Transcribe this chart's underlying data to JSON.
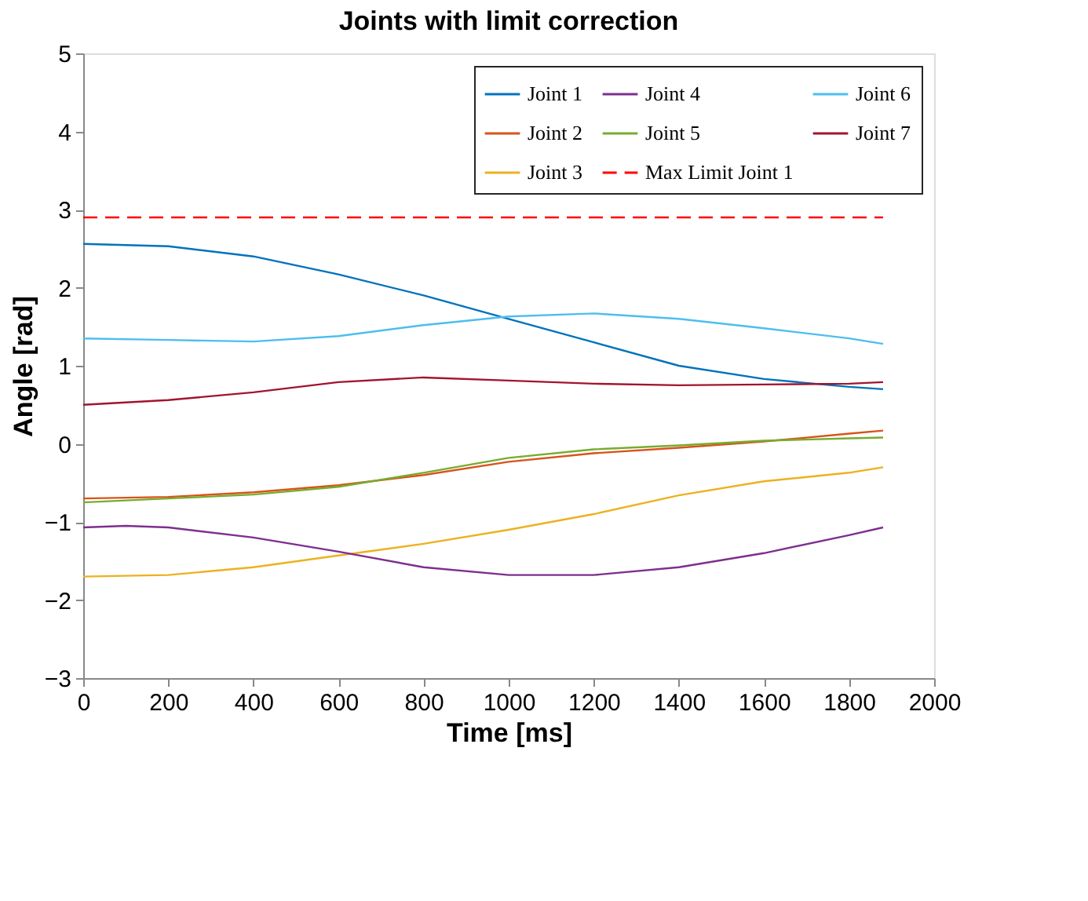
{
  "chart_data": {
    "type": "line",
    "title": "Joints with limit correction",
    "xlabel": "Time [ms]",
    "ylabel": "Angle [rad]",
    "x": [
      0,
      200,
      400,
      600,
      800,
      1000,
      1200,
      1400,
      1600,
      1800,
      1880
    ],
    "series": [
      {
        "name": "Joint 1",
        "color": "#0072bd",
        "values": [
          2.56,
          2.53,
          2.4,
          2.17,
          1.9,
          1.6,
          1.3,
          1.0,
          0.83,
          0.73,
          0.7
        ]
      },
      {
        "name": "Joint 2",
        "color": "#d95319",
        "values": [
          -0.7,
          -0.68,
          -0.62,
          -0.53,
          -0.4,
          -0.23,
          -0.12,
          -0.05,
          0.03,
          0.13,
          0.17
        ]
      },
      {
        "name": "Joint 3",
        "color": "#edb120",
        "values": [
          -1.7,
          -1.68,
          -1.58,
          -1.43,
          -1.28,
          -1.1,
          -0.9,
          -0.66,
          -0.48,
          -0.37,
          -0.3
        ]
      },
      {
        "name": "Joint 4",
        "color": "#7e2f8e",
        "x": [
          0,
          100,
          200,
          400,
          600,
          800,
          1000,
          1200,
          1400,
          1600,
          1800,
          1880
        ],
        "values": [
          -1.07,
          -1.05,
          -1.07,
          -1.2,
          -1.38,
          -1.58,
          -1.68,
          -1.68,
          -1.58,
          -1.4,
          -1.17,
          -1.07
        ]
      },
      {
        "name": "Joint 5",
        "color": "#77ac30",
        "values": [
          -0.75,
          -0.7,
          -0.65,
          -0.55,
          -0.37,
          -0.18,
          -0.07,
          -0.02,
          0.04,
          0.07,
          0.08
        ]
      },
      {
        "name": "Max Limit Joint 1",
        "color": "#ff0000",
        "x": [
          0,
          1880
        ],
        "values": [
          2.9,
          2.9
        ],
        "line_style": "dashed"
      },
      {
        "name": "Joint 6",
        "color": "#4dbeee",
        "values": [
          1.35,
          1.33,
          1.31,
          1.38,
          1.52,
          1.63,
          1.67,
          1.6,
          1.48,
          1.35,
          1.28
        ]
      },
      {
        "name": "Joint 7",
        "color": "#a2142f",
        "values": [
          0.5,
          0.56,
          0.66,
          0.79,
          0.85,
          0.81,
          0.77,
          0.75,
          0.76,
          0.77,
          0.79
        ]
      }
    ],
    "xlim": [
      0,
      2000
    ],
    "xticks": [
      0,
      200,
      400,
      600,
      800,
      1000,
      1200,
      1400,
      1600,
      1800,
      2000
    ],
    "ylim": [
      -3,
      5
    ],
    "yticks": [
      -3,
      -2,
      -1,
      0,
      1,
      2,
      3,
      4,
      5
    ],
    "grid": false,
    "legend": "top right",
    "line_style": "solid",
    "marker": "none"
  }
}
